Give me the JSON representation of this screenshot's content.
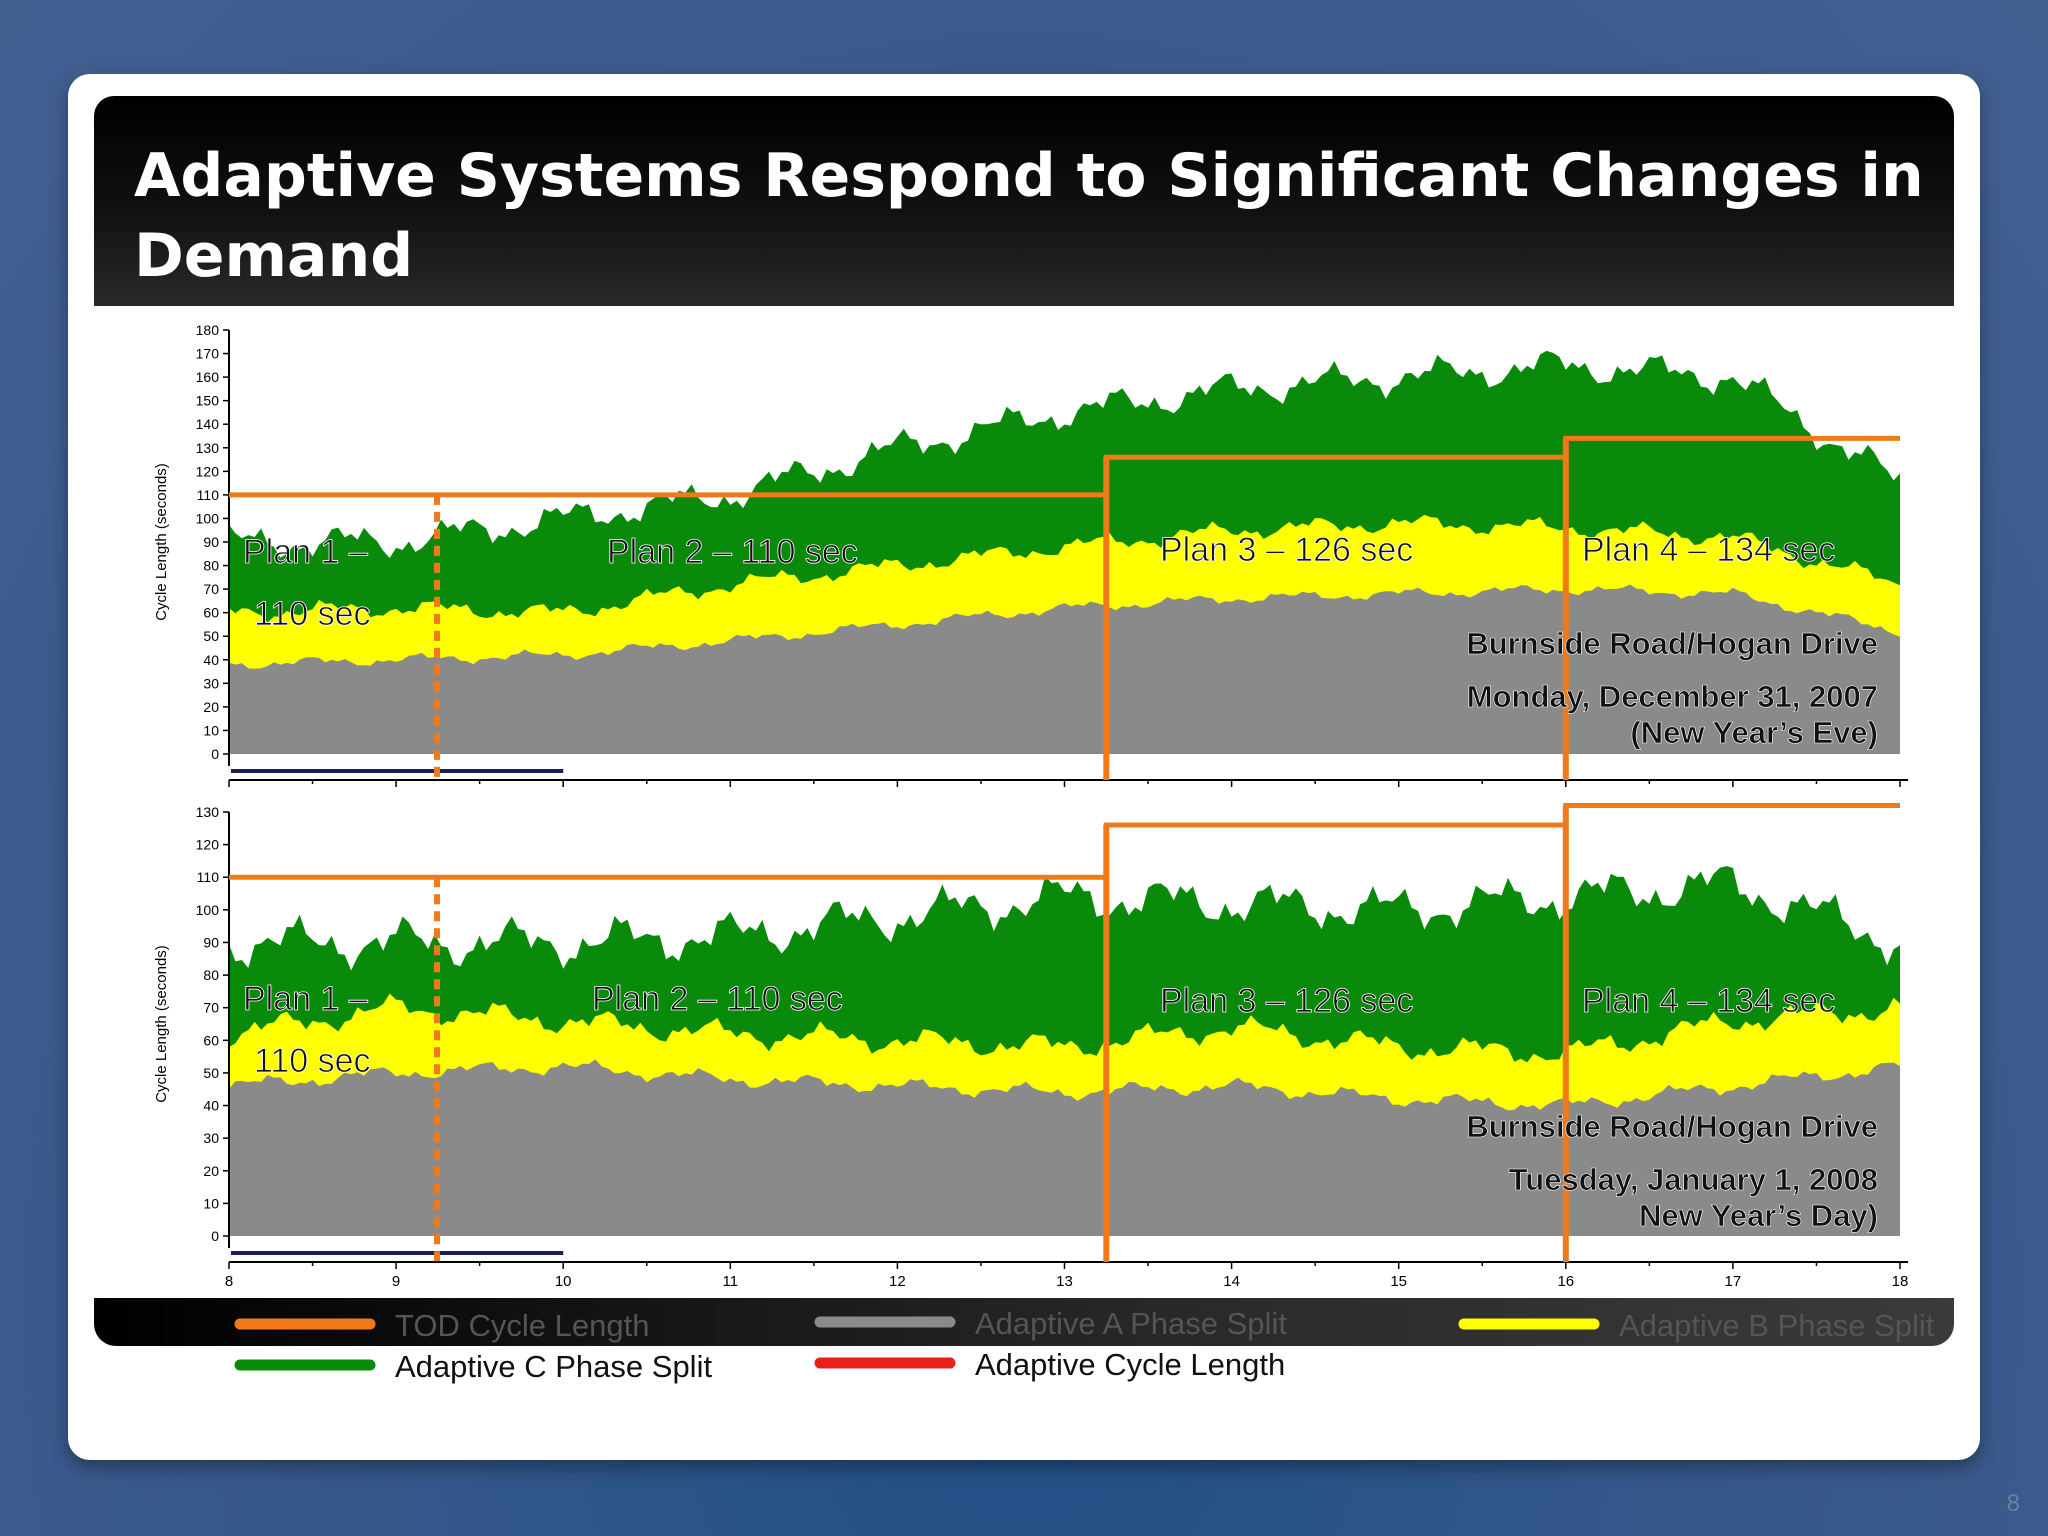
{
  "slide": {
    "title": "Adaptive Systems Respond to Significant Changes in\n   Demand",
    "page_number": "8"
  },
  "colors": {
    "tod": "#f07a1a",
    "adaptive_a": "#8a8a8a",
    "adaptive_b": "#ffff00",
    "adaptive_c": "#0a8a0a",
    "adaptive_cycle": "#e8201a"
  },
  "chart_data": [
    {
      "type": "area",
      "ylabel": "Cycle Length (seconds)",
      "ylim": [
        0,
        180
      ],
      "yticks": [
        0,
        10,
        20,
        30,
        40,
        50,
        60,
        70,
        80,
        90,
        100,
        110,
        120,
        130,
        140,
        150,
        160,
        170,
        180
      ],
      "xlim": [
        8,
        18
      ],
      "series": [
        {
          "name": "Adaptive A Phase Split",
          "key": "a",
          "x": [
            8,
            9,
            10,
            11,
            12,
            13,
            14,
            15,
            16,
            17,
            18
          ],
          "values": [
            38,
            40,
            42,
            48,
            55,
            62,
            66,
            68,
            70,
            68,
            52
          ]
        },
        {
          "name": "Adaptive B Phase Split",
          "key": "b",
          "x": [
            8,
            9,
            10,
            11,
            12,
            13,
            14,
            15,
            16,
            17,
            18
          ],
          "values": [
            60,
            62,
            60,
            72,
            80,
            88,
            95,
            98,
            96,
            92,
            72
          ]
        },
        {
          "name": "Adaptive C Phase Split",
          "key": "c",
          "x": [
            8,
            9,
            10,
            11,
            12,
            13,
            14,
            15,
            16,
            17,
            18
          ],
          "values": [
            90,
            90,
            100,
            110,
            130,
            145,
            155,
            160,
            165,
            160,
            115
          ]
        }
      ],
      "tod_cycle": {
        "x": [
          8,
          13.25,
          13.25,
          16,
          16,
          18
        ],
        "values": [
          110,
          110,
          126,
          126,
          134,
          134
        ]
      },
      "plans": [
        "Plan 1 –",
        "110 sec",
        "Plan 2 – 110 sec",
        "Plan 3 – 126 sec",
        "Plan 4 – 134 sec"
      ],
      "location": "Burnside Road/Hogan Drive",
      "date": "Monday, December 31, 2007",
      "note": "(New Year’s  Eve)"
    },
    {
      "type": "area",
      "ylabel": "Cycle Length (seconds)",
      "ylim": [
        0,
        130
      ],
      "yticks": [
        0,
        10,
        20,
        30,
        40,
        50,
        60,
        70,
        80,
        90,
        100,
        110,
        120,
        130
      ],
      "xlim": [
        8,
        18
      ],
      "xticks": [
        8,
        9,
        10,
        11,
        12,
        13,
        14,
        15,
        16,
        17,
        18
      ],
      "series": [
        {
          "name": "Adaptive A Phase Split",
          "key": "a",
          "x": [
            8,
            9,
            10,
            11,
            12,
            13,
            14,
            15,
            16,
            17,
            18
          ],
          "values": [
            46,
            50,
            52,
            48,
            46,
            44,
            46,
            42,
            40,
            46,
            52
          ]
        },
        {
          "name": "Adaptive B Phase Split",
          "key": "b",
          "x": [
            8,
            9,
            10,
            11,
            12,
            13,
            14,
            15,
            16,
            17,
            18
          ],
          "values": [
            62,
            70,
            66,
            62,
            60,
            58,
            64,
            58,
            56,
            66,
            70
          ]
        },
        {
          "name": "Adaptive C Phase Split",
          "key": "c",
          "x": [
            8,
            9,
            10,
            11,
            12,
            13,
            14,
            15,
            16,
            17,
            18
          ],
          "values": [
            90,
            90,
            90,
            92,
            98,
            104,
            102,
            100,
            104,
            108,
            90
          ]
        }
      ],
      "tod_cycle": {
        "x": [
          8,
          13.25,
          13.25,
          16,
          16,
          18
        ],
        "values": [
          110,
          110,
          126,
          126,
          134,
          134
        ]
      },
      "plans": [
        "Plan 1 –",
        "110 sec",
        "Plan 2 – 110 sec",
        "Plan 3 – 126 sec",
        "Plan 4 – 134 sec"
      ],
      "location": "Burnside Road/Hogan Drive",
      "date": "Tuesday, January 1, 2008",
      "note": "New Year’s Day)"
    }
  ],
  "legend": [
    {
      "label": "TOD Cycle Length",
      "color": "#f07a1a"
    },
    {
      "label": "Adaptive A Phase Split",
      "color": "#8a8a8a"
    },
    {
      "label": "Adaptive B Phase Split",
      "color": "#ffff00"
    },
    {
      "label": "Adaptive C Phase Split",
      "color": "#0a8a0a"
    },
    {
      "label": "Adaptive Cycle Length",
      "color": "#e8201a"
    }
  ]
}
